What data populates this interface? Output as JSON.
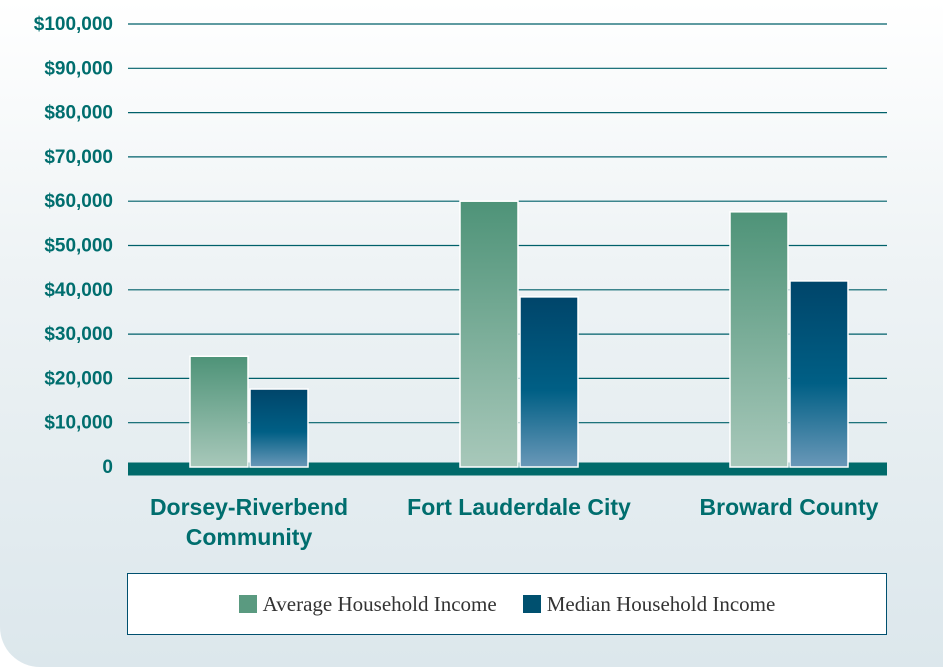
{
  "chart_data": {
    "type": "bar",
    "categories": [
      "Dorsey-Riverbend Community",
      "Fort Lauderdale City",
      "Broward County"
    ],
    "series": [
      {
        "name": "Average Household Income",
        "color": "#5a9a80",
        "values": [
          25000,
          60000,
          57600
        ]
      },
      {
        "name": "Median Household Income",
        "color": "#00506f",
        "values": [
          17600,
          38400,
          42000
        ]
      }
    ],
    "ylim": [
      0,
      100000
    ],
    "yticks": [
      0,
      {
        "value": 10000,
        "label": "$10,000"
      },
      {
        "value": 20000,
        "label": "$20,000"
      },
      {
        "value": 30000,
        "label": "$30,000"
      },
      {
        "value": 40000,
        "label": "$40,000"
      },
      {
        "value": 50000,
        "label": "$50,000"
      },
      {
        "value": 60000,
        "label": "$60,000"
      },
      {
        "value": 70000,
        "label": "$70,000"
      },
      {
        "value": 80000,
        "label": "$80,000"
      },
      {
        "value": 90000,
        "label": "$90,000"
      },
      {
        "value": 100000,
        "label": "$100,000"
      }
    ],
    "grid": true,
    "legend": "bottom"
  }
}
